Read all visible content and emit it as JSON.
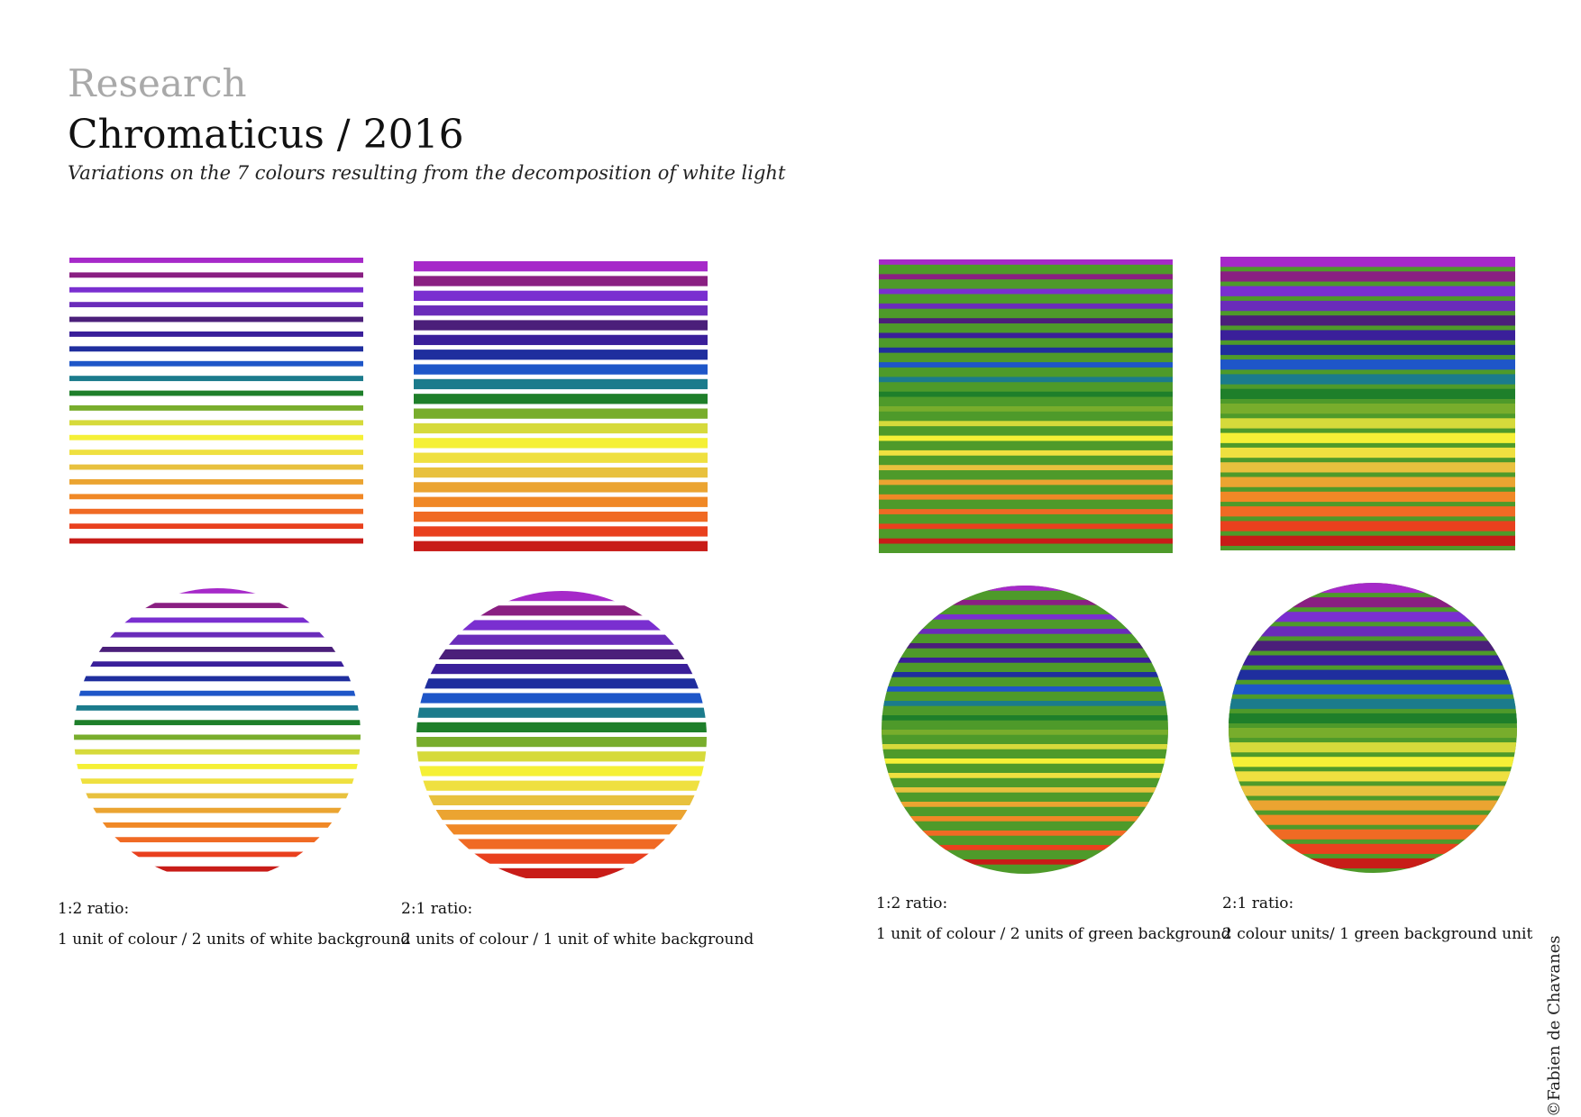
{
  "header": {
    "section": "Research",
    "title": "Chromaticus / 2016",
    "subtitle": "Variations on the 7 colours resulting from the decomposition of white light"
  },
  "palette": [
    "#a629c9",
    "#8a1f82",
    "#7a2fd0",
    "#6a2cba",
    "#4b1f7a",
    "#3a1f9a",
    "#1f2e9e",
    "#1e56c8",
    "#1b7b8c",
    "#1e7f2a",
    "#78ad2c",
    "#d6da3b",
    "#f5f036",
    "#efe040",
    "#e8c13e",
    "#eba431",
    "#f08826",
    "#f06a24",
    "#e9401e",
    "#c81c18"
  ],
  "backgrounds": {
    "white": "#ffffff",
    "green": "#4e9a2a"
  },
  "panels": [
    {
      "id": "white-1-2",
      "background": "white",
      "colour_units": 1,
      "background_units": 2,
      "caption": {
        "ratio": "1:2 ratio:",
        "description": "1 unit of colour / 2 units of white background"
      }
    },
    {
      "id": "white-2-1",
      "background": "white",
      "colour_units": 2,
      "background_units": 1,
      "caption": {
        "ratio": "2:1 ratio:",
        "description": "2 units of colour / 1 unit of white background"
      }
    },
    {
      "id": "green-1-2",
      "background": "green",
      "colour_units": 1,
      "background_units": 2,
      "caption": {
        "ratio": "1:2 ratio:",
        "description": "1 unit of colour / 2 units of green background"
      }
    },
    {
      "id": "green-2-1",
      "background": "green",
      "colour_units": 2,
      "background_units": 1,
      "caption": {
        "ratio": "2:1 ratio:",
        "description": "2 colour units/ 1 green background unit"
      }
    }
  ],
  "copyright": "©Fabien de Chavanes"
}
